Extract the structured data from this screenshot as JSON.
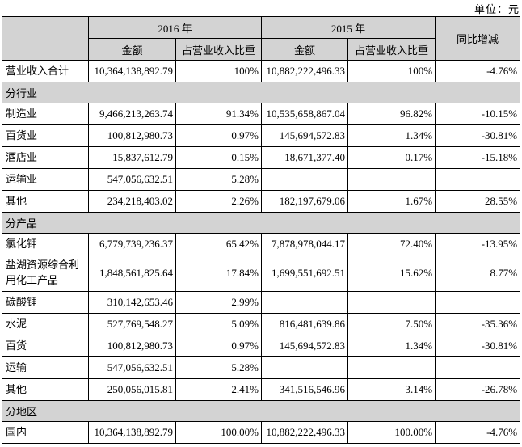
{
  "unit_label": "单位：元",
  "colors": {
    "header_bg": "#d3d3d3",
    "section_bg": "#d3d3d3",
    "border": "#000000",
    "page_bg": "#ffffff"
  },
  "table": {
    "header": {
      "year_2016": "2016 年",
      "year_2015": "2015 年",
      "amount_2016": "金额",
      "ratio_2016": "占营业收入比重",
      "amount_2015": "金额",
      "ratio_2015": "占营业收入比重",
      "yoy": "同比增减"
    },
    "rows": [
      {
        "type": "data",
        "label": "营业收入合计",
        "a2016": "10,364,138,892.79",
        "r2016": "100%",
        "a2015": "10,882,222,496.33",
        "r2015": "100%",
        "yoy": "-4.76%"
      },
      {
        "type": "section",
        "label": "分行业"
      },
      {
        "type": "data",
        "label": "制造业",
        "a2016": "9,466,213,263.74",
        "r2016": "91.34%",
        "a2015": "10,535,658,867.04",
        "r2015": "96.82%",
        "yoy": "-10.15%"
      },
      {
        "type": "data",
        "label": "百货业",
        "a2016": "100,812,980.73",
        "r2016": "0.97%",
        "a2015": "145,694,572.83",
        "r2015": "1.34%",
        "yoy": "-30.81%"
      },
      {
        "type": "data",
        "label": "酒店业",
        "a2016": "15,837,612.79",
        "r2016": "0.15%",
        "a2015": "18,671,377.40",
        "r2015": "0.17%",
        "yoy": "-15.18%"
      },
      {
        "type": "data",
        "label": "运输业",
        "a2016": "547,056,632.51",
        "r2016": "5.28%",
        "a2015": "",
        "r2015": "",
        "yoy": ""
      },
      {
        "type": "data",
        "label": "其他",
        "a2016": "234,218,403.02",
        "r2016": "2.26%",
        "a2015": "182,197,679.06",
        "r2015": "1.67%",
        "yoy": "28.55%"
      },
      {
        "type": "section",
        "label": "分产品"
      },
      {
        "type": "data",
        "label": "氯化钾",
        "a2016": "6,779,739,236.37",
        "r2016": "65.42%",
        "a2015": "7,878,978,044.17",
        "r2015": "72.40%",
        "yoy": "-13.95%"
      },
      {
        "type": "data",
        "tall": true,
        "label": "盐湖资源综合利用化工产品",
        "a2016": "1,848,561,825.64",
        "r2016": "17.84%",
        "a2015": "1,699,551,692.51",
        "r2015": "15.62%",
        "yoy": "8.77%"
      },
      {
        "type": "data",
        "label": "碳酸锂",
        "a2016": "310,142,653.46",
        "r2016": "2.99%",
        "a2015": "",
        "r2015": "",
        "yoy": ""
      },
      {
        "type": "data",
        "label": "水泥",
        "a2016": "527,769,548.27",
        "r2016": "5.09%",
        "a2015": "816,481,639.86",
        "r2015": "7.50%",
        "yoy": "-35.36%"
      },
      {
        "type": "data",
        "label": "百货",
        "a2016": "100,812,980.73",
        "r2016": "0.97%",
        "a2015": "145,694,572.83",
        "r2015": "1.34%",
        "yoy": "-30.81%"
      },
      {
        "type": "data",
        "label": "运输",
        "a2016": "547,056,632.51",
        "r2016": "5.28%",
        "a2015": "",
        "r2015": "",
        "yoy": ""
      },
      {
        "type": "data",
        "label": "其他",
        "a2016": "250,056,015.81",
        "r2016": "2.41%",
        "a2015": "341,516,546.96",
        "r2015": "3.14%",
        "yoy": "-26.78%"
      },
      {
        "type": "section",
        "label": "分地区"
      },
      {
        "type": "data",
        "label": "国内",
        "a2016": "10,364,138,892.79",
        "r2016": "100.00%",
        "a2015": "10,882,222,496.33",
        "r2015": "100.00%",
        "yoy": "-4.76%"
      }
    ]
  }
}
